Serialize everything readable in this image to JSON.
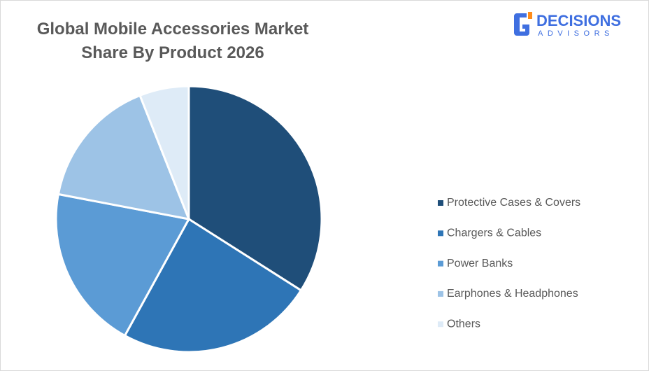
{
  "chart_data": {
    "type": "pie",
    "title": "Global Mobile Accessories Market Share By Product 2026",
    "categories": [
      "Protective Cases & Covers",
      "Chargers & Cables",
      "Power Banks",
      "Earphones & Headphones",
      "Others"
    ],
    "values": [
      34,
      24,
      20,
      16,
      6
    ],
    "colors": [
      "#1f4e79",
      "#2e75b6",
      "#5b9bd5",
      "#9dc3e6",
      "#deebf7"
    ],
    "legend": "right"
  },
  "logo": {
    "name": "DECISIONS",
    "tagline": "ADVISORS"
  }
}
